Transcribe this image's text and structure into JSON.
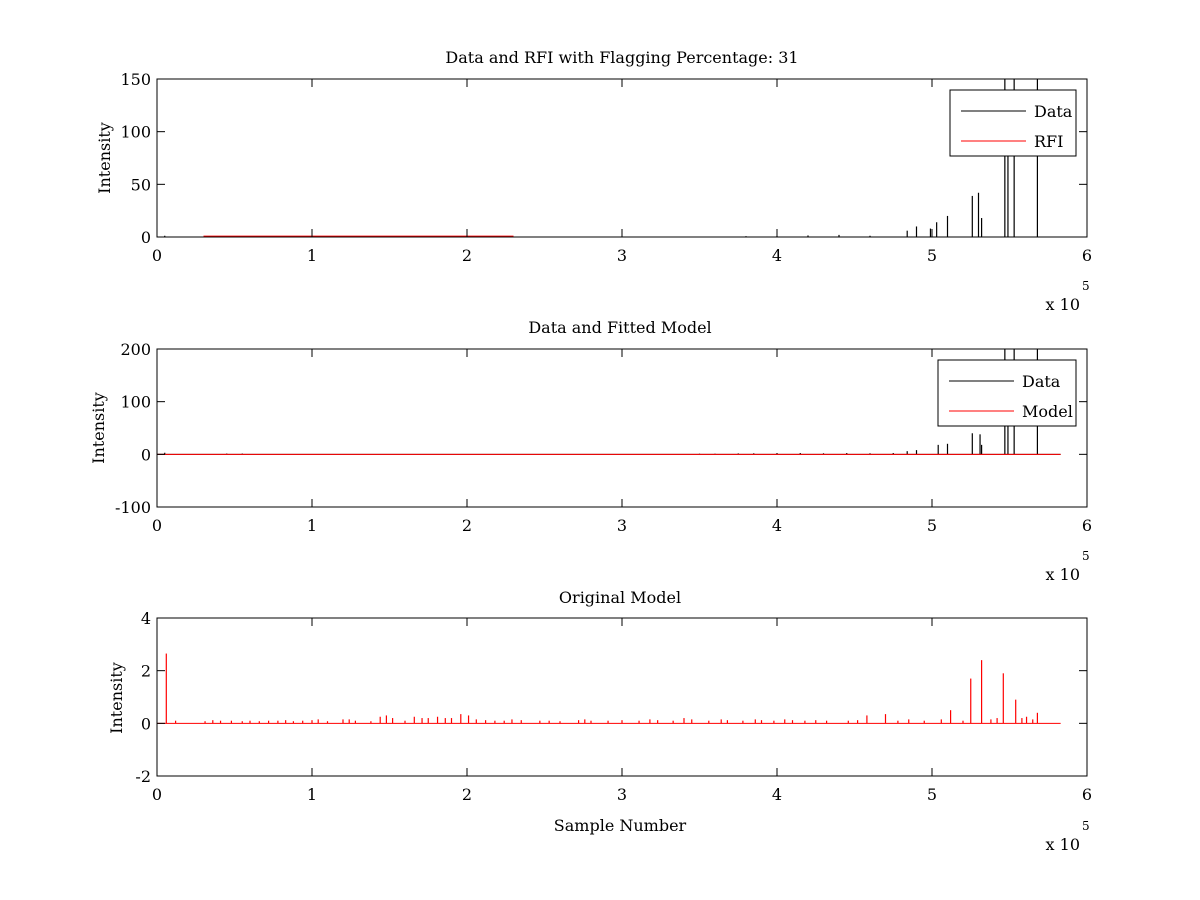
{
  "figure": {
    "background": "#ffffff"
  },
  "chart_data": [
    {
      "type": "line",
      "title": "Data and RFI with Flagging Percentage: 31",
      "xlabel": "",
      "ylabel": "Intensity",
      "xlim": [
        0,
        600000
      ],
      "ylim": [
        0,
        150
      ],
      "xticks": [
        "0",
        "1",
        "2",
        "3",
        "4",
        "5",
        "6"
      ],
      "yticks": [
        "0",
        "50",
        "100",
        "150"
      ],
      "x_exponent_label": "x 10",
      "x_exponent": "5",
      "legend": {
        "placement": "top-right",
        "entries": [
          "Data",
          "RFI"
        ]
      },
      "series": [
        {
          "name": "Data",
          "color": "#000000",
          "baseline": 0,
          "x_end": 583000,
          "spikes": [
            [
              5000,
              1.2
            ],
            [
              150000,
              0.6
            ],
            [
              380000,
              0.8
            ],
            [
              400000,
              1.0
            ],
            [
              420000,
              1.5
            ],
            [
              440000,
              2.0
            ],
            [
              460000,
              1.2
            ],
            [
              484000,
              6
            ],
            [
              490000,
              10
            ],
            [
              499000,
              8
            ],
            [
              503000,
              14
            ],
            [
              510000,
              20
            ],
            [
              526000,
              39
            ],
            [
              530000,
              42
            ],
            [
              532000,
              18
            ],
            [
              547000,
              150
            ],
            [
              549000,
              80
            ],
            [
              553000,
              150
            ],
            [
              568000,
              150
            ]
          ]
        },
        {
          "name": "RFI",
          "color": "#ff0000",
          "baseline": 0.8,
          "x_start": 30000,
          "x_end": 230000,
          "spikes": []
        }
      ]
    },
    {
      "type": "line",
      "title": "Data and Fitted Model",
      "xlabel": "",
      "ylabel": "Intensity",
      "xlim": [
        0,
        600000
      ],
      "ylim": [
        -100,
        200
      ],
      "xticks": [
        "0",
        "1",
        "2",
        "3",
        "4",
        "5",
        "6"
      ],
      "yticks": [
        "-100",
        "0",
        "100",
        "200"
      ],
      "x_exponent_label": "x 10",
      "x_exponent": "5",
      "legend": {
        "placement": "top-right",
        "entries": [
          "Data",
          "Model"
        ]
      },
      "series": [
        {
          "name": "Data",
          "color": "#000000",
          "baseline": 0,
          "x_end": 583000,
          "spikes": [
            [
              5000,
              3
            ],
            [
              45000,
              1.5
            ],
            [
              55000,
              1.5
            ],
            [
              350000,
              1.2
            ],
            [
              360000,
              1.2
            ],
            [
              375000,
              1.8
            ],
            [
              385000,
              2
            ],
            [
              400000,
              2.5
            ],
            [
              415000,
              2.5
            ],
            [
              430000,
              2
            ],
            [
              445000,
              2.5
            ],
            [
              460000,
              2
            ],
            [
              475000,
              2.5
            ],
            [
              484000,
              6
            ],
            [
              490000,
              8
            ],
            [
              504000,
              18
            ],
            [
              510000,
              20
            ],
            [
              526000,
              40
            ],
            [
              531000,
              38
            ],
            [
              532000,
              18
            ],
            [
              547000,
              200
            ],
            [
              549000,
              60
            ],
            [
              553000,
              200
            ],
            [
              568000,
              200
            ]
          ]
        },
        {
          "name": "Model",
          "color": "#ff0000",
          "baseline": 0,
          "x_end": 583000,
          "spikes": []
        }
      ]
    },
    {
      "type": "line",
      "title": "Original Model",
      "xlabel": "Sample Number",
      "ylabel": "Intensity",
      "xlim": [
        0,
        600000
      ],
      "ylim": [
        -2,
        4
      ],
      "xticks": [
        "0",
        "1",
        "2",
        "3",
        "4",
        "5",
        "6"
      ],
      "yticks": [
        "-2",
        "0",
        "2",
        "4"
      ],
      "x_exponent_label": "x 10",
      "x_exponent": "5",
      "series": [
        {
          "name": "",
          "color": "#ff0000",
          "baseline": 0,
          "x_end": 583000,
          "spikes": [
            [
              6000,
              2.65
            ],
            [
              12000,
              0.1
            ],
            [
              31000,
              0.08
            ],
            [
              36000,
              0.12
            ],
            [
              41000,
              0.1
            ],
            [
              48000,
              0.1
            ],
            [
              55000,
              0.08
            ],
            [
              60000,
              0.1
            ],
            [
              66000,
              0.08
            ],
            [
              72000,
              0.1
            ],
            [
              78000,
              0.1
            ],
            [
              83000,
              0.12
            ],
            [
              88000,
              0.08
            ],
            [
              94000,
              0.1
            ],
            [
              100000,
              0.12
            ],
            [
              104000,
              0.15
            ],
            [
              110000,
              0.08
            ],
            [
              120000,
              0.15
            ],
            [
              124000,
              0.15
            ],
            [
              128000,
              0.1
            ],
            [
              138000,
              0.08
            ],
            [
              144000,
              0.25
            ],
            [
              148000,
              0.3
            ],
            [
              152000,
              0.2
            ],
            [
              160000,
              0.1
            ],
            [
              166000,
              0.25
            ],
            [
              171000,
              0.2
            ],
            [
              175000,
              0.2
            ],
            [
              181000,
              0.25
            ],
            [
              186000,
              0.2
            ],
            [
              190000,
              0.2
            ],
            [
              196000,
              0.35
            ],
            [
              201000,
              0.3
            ],
            [
              206000,
              0.15
            ],
            [
              212000,
              0.12
            ],
            [
              218000,
              0.1
            ],
            [
              224000,
              0.1
            ],
            [
              229000,
              0.15
            ],
            [
              235000,
              0.12
            ],
            [
              247000,
              0.1
            ],
            [
              253000,
              0.1
            ],
            [
              260000,
              0.08
            ],
            [
              272000,
              0.12
            ],
            [
              276000,
              0.15
            ],
            [
              280000,
              0.1
            ],
            [
              291000,
              0.1
            ],
            [
              300000,
              0.12
            ],
            [
              311000,
              0.1
            ],
            [
              318000,
              0.15
            ],
            [
              323000,
              0.12
            ],
            [
              333000,
              0.1
            ],
            [
              340000,
              0.2
            ],
            [
              345000,
              0.15
            ],
            [
              356000,
              0.1
            ],
            [
              364000,
              0.15
            ],
            [
              368000,
              0.12
            ],
            [
              378000,
              0.1
            ],
            [
              386000,
              0.15
            ],
            [
              390000,
              0.12
            ],
            [
              398000,
              0.1
            ],
            [
              405000,
              0.15
            ],
            [
              410000,
              0.12
            ],
            [
              418000,
              0.1
            ],
            [
              425000,
              0.12
            ],
            [
              432000,
              0.1
            ],
            [
              446000,
              0.1
            ],
            [
              452000,
              0.12
            ],
            [
              458000,
              0.3
            ],
            [
              470000,
              0.35
            ],
            [
              478000,
              0.1
            ],
            [
              485000,
              0.15
            ],
            [
              495000,
              0.1
            ],
            [
              506000,
              0.15
            ],
            [
              512000,
              0.5
            ],
            [
              520000,
              0.1
            ],
            [
              525000,
              1.7
            ],
            [
              532000,
              2.4
            ],
            [
              538000,
              0.15
            ],
            [
              542000,
              0.2
            ],
            [
              546000,
              1.9
            ],
            [
              554000,
              0.9
            ],
            [
              558000,
              0.2
            ],
            [
              561000,
              0.25
            ],
            [
              565000,
              0.15
            ],
            [
              568000,
              0.4
            ]
          ]
        }
      ]
    }
  ]
}
